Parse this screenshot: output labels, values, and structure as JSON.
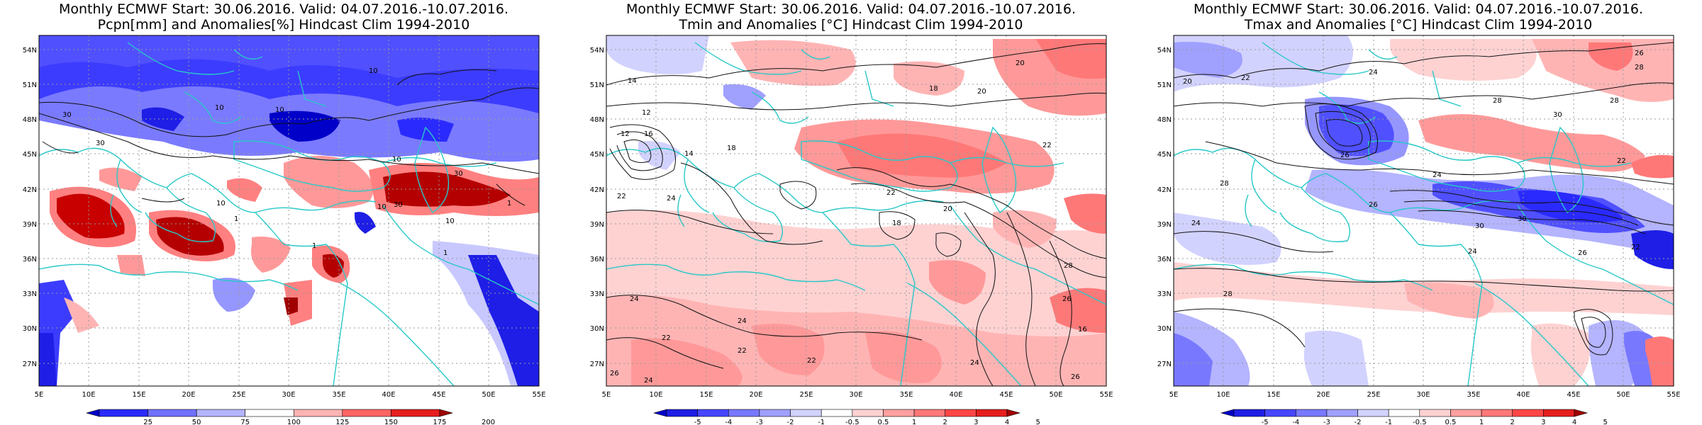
{
  "panels": [
    {
      "title_line1": "Monthly ECMWF Start: 30.06.2016. Valid: 04.07.2016.-10.07.2016.",
      "title_line2": "Pcpn[mm] and Anomalies[%] Hindcast Clim 1994-2010",
      "map_type": "precipitation-anomaly",
      "colorbar": {
        "labels": [
          "25",
          "50",
          "75",
          "100",
          "125",
          "150",
          "175",
          "200"
        ],
        "colors": [
          "#0000c8",
          "#2a2aff",
          "#7070ff",
          "#b4b4ff",
          "#ffffff",
          "#ffb4b4",
          "#ff6464",
          "#e61e1e",
          "#a00000"
        ]
      }
    },
    {
      "title_line1": "Monthly ECMWF Start: 30.06.2016. Valid: 04.07.2016.-10.07.2016.",
      "title_line2": "Tmin and Anomalies [°C] Hindcast Clim 1994-2010",
      "map_type": "temperature-anomaly",
      "colorbar": {
        "labels": [
          "-5",
          "-4",
          "-3",
          "-2",
          "-1",
          "-0.5",
          "0.5",
          "1",
          "2",
          "3",
          "4",
          "5"
        ],
        "colors": [
          "#0000c8",
          "#1e1ee6",
          "#4646ff",
          "#7878ff",
          "#a0a0ff",
          "#d2d2ff",
          "#ffffff",
          "#ffd2d2",
          "#ffa0a0",
          "#ff7878",
          "#ff4646",
          "#e61e1e",
          "#a00000"
        ]
      }
    },
    {
      "title_line1": "Monthly ECMWF Start: 30.06.2016. Valid: 04.07.2016.-10.07.2016.",
      "title_line2": "Tmax and Anomalies [°C] Hindcast Clim 1994-2010",
      "map_type": "temperature-anomaly",
      "colorbar": {
        "labels": [
          "-5",
          "-4",
          "-3",
          "-2",
          "-1",
          "-0.5",
          "0.5",
          "1",
          "2",
          "3",
          "4",
          "5"
        ],
        "colors": [
          "#0000c8",
          "#1e1ee6",
          "#4646ff",
          "#7878ff",
          "#a0a0ff",
          "#d2d2ff",
          "#ffffff",
          "#ffd2d2",
          "#ffa0a0",
          "#ff7878",
          "#ff4646",
          "#e61e1e",
          "#a00000"
        ]
      }
    }
  ],
  "axes": {
    "lon_labels": [
      "5E",
      "10E",
      "15E",
      "20E",
      "25E",
      "30E",
      "35E",
      "40E",
      "45E",
      "50E",
      "55E"
    ],
    "lat_labels": [
      "54N",
      "51N",
      "48N",
      "45N",
      "42N",
      "39N",
      "36N",
      "33N",
      "30N",
      "27N"
    ]
  },
  "contour_labels": {
    "p0": [
      "10",
      "10",
      "10",
      "10",
      "10",
      "10",
      "10",
      "30",
      "30",
      "30",
      "30",
      "1",
      "1",
      "1",
      "1"
    ],
    "p1": [
      "14",
      "12",
      "12",
      "16",
      "14",
      "18",
      "18",
      "20",
      "20",
      "22",
      "22",
      "22",
      "24",
      "24",
      "24",
      "26",
      "22",
      "24",
      "28",
      "22",
      "26",
      "20",
      "22",
      "16",
      "18",
      "24",
      "26"
    ],
    "p2": [
      "26",
      "28",
      "20",
      "22",
      "24",
      "28",
      "30",
      "28",
      "26",
      "24",
      "22",
      "28",
      "26",
      "24",
      "30",
      "22",
      "30",
      "26",
      "28",
      "24"
    ]
  }
}
